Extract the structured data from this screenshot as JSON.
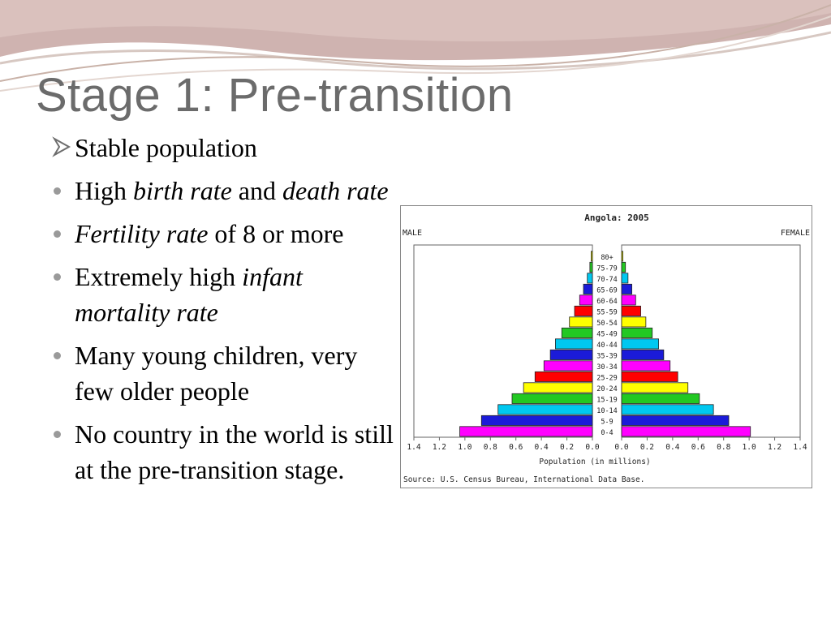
{
  "slide": {
    "title": "Stage 1: Pre-transition"
  },
  "bullets": [
    {
      "marker": "arrow-icon",
      "segments": [
        {
          "text": "Stable population",
          "italic": false
        }
      ]
    },
    {
      "marker": "dot-icon",
      "segments": [
        {
          "text": "High ",
          "italic": false
        },
        {
          "text": "birth rate",
          "italic": true
        },
        {
          "text": " and ",
          "italic": false
        },
        {
          "text": "death rate",
          "italic": true
        }
      ]
    },
    {
      "marker": "dot-icon",
      "segments": [
        {
          "text": "Fertility rate",
          "italic": true
        },
        {
          "text": " of 8 or more",
          "italic": false
        }
      ]
    },
    {
      "marker": "dot-icon",
      "segments": [
        {
          "text": "Extremely high ",
          "italic": false
        },
        {
          "text": "infant mortality rate",
          "italic": true
        }
      ]
    },
    {
      "marker": "dot-icon",
      "segments": [
        {
          "text": "Many young children, very few older people",
          "italic": false
        }
      ]
    },
    {
      "marker": "dot-icon",
      "segments": [
        {
          "text": "No country in the world is still at the pre-transition stage.",
          "italic": false
        }
      ]
    }
  ],
  "colors": {
    "title": "#6b6b6b",
    "bullet": "#9a9a9a"
  },
  "chart_data": {
    "type": "bar",
    "subtype": "population-pyramid",
    "title": "Angola: 2005",
    "left_label": "MALE",
    "right_label": "FEMALE",
    "xlabel": "Population (in millions)",
    "source": "Source: U.S. Census Bureau, International Data Base.",
    "xlim": [
      0,
      1.4
    ],
    "ticks": [
      "1.4",
      "1.2",
      "1.0",
      "0.8",
      "0.6",
      "0.4",
      "0.2",
      "0.0",
      "0.0",
      "0.2",
      "0.4",
      "0.6",
      "0.8",
      "1.0",
      "1.2",
      "1.4"
    ],
    "categories": [
      "0-4",
      "5-9",
      "10-14",
      "15-19",
      "20-24",
      "25-29",
      "30-34",
      "35-39",
      "40-44",
      "45-49",
      "50-54",
      "55-59",
      "60-64",
      "65-69",
      "70-74",
      "75-79",
      "80+"
    ],
    "series": [
      {
        "name": "MALE",
        "values": [
          1.04,
          0.87,
          0.74,
          0.63,
          0.54,
          0.45,
          0.38,
          0.33,
          0.29,
          0.24,
          0.18,
          0.14,
          0.1,
          0.07,
          0.04,
          0.02,
          0.01
        ]
      },
      {
        "name": "FEMALE",
        "values": [
          1.01,
          0.84,
          0.72,
          0.61,
          0.52,
          0.44,
          0.38,
          0.33,
          0.29,
          0.24,
          0.19,
          0.15,
          0.11,
          0.08,
          0.05,
          0.03,
          0.01
        ]
      }
    ],
    "bar_colors": [
      "#ff00ff",
      "#1b1bd8",
      "#00c8f0",
      "#22c822",
      "#ffff00",
      "#ff0000",
      "#ff00ff",
      "#1b1bd8",
      "#00c8f0",
      "#22c822",
      "#ffff00",
      "#ff0000",
      "#ff00ff",
      "#1b1bd8",
      "#00c8f0",
      "#22c822",
      "#ffff00"
    ],
    "grid": false
  }
}
